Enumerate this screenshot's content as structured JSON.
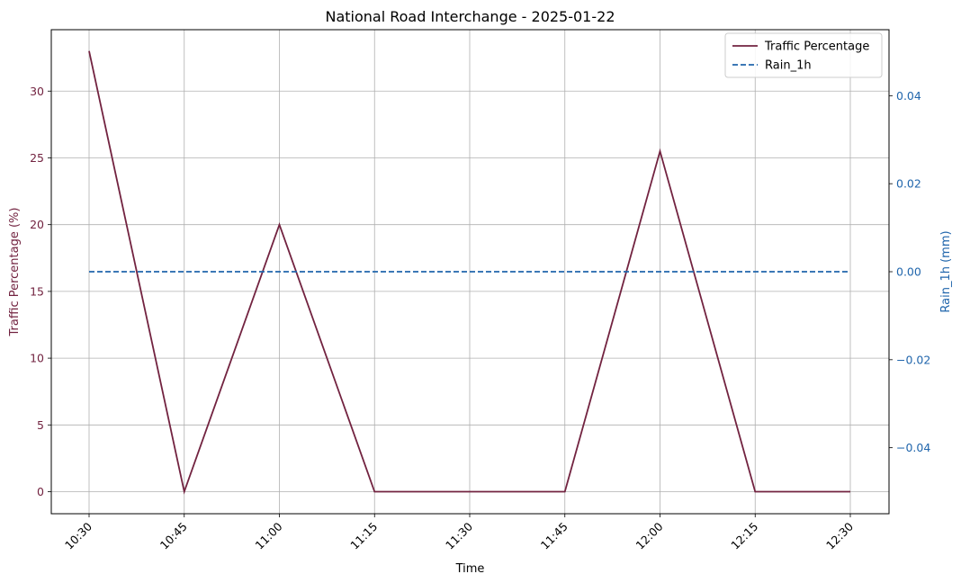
{
  "chart_data": {
    "type": "line",
    "title": "National Road Interchange - 2025-01-22",
    "xlabel": "Time",
    "ylabel_left": "Traffic Percentage (%)",
    "ylabel_right": "Rain_1h (mm)",
    "x": [
      "10:30",
      "10:45",
      "11:00",
      "11:15",
      "11:30",
      "11:45",
      "12:00",
      "12:15",
      "12:30"
    ],
    "ylim_left": [
      -1.65,
      34.6
    ],
    "ylim_right": [
      -0.055,
      0.055
    ],
    "yticks_left": [
      0,
      5,
      10,
      15,
      20,
      25,
      30
    ],
    "yticks_right": [
      -0.04,
      -0.02,
      0.0,
      0.02,
      0.04
    ],
    "ytick_labels_right": [
      "−0.04",
      "−0.02",
      "0.00",
      "0.02",
      "0.04"
    ],
    "grid": true,
    "legend_position": "top-right",
    "series": [
      {
        "name": "Traffic Percentage",
        "axis": "left",
        "style": "solid",
        "color": "#722340",
        "values": [
          33.0,
          0.0,
          20.0,
          0.0,
          0.0,
          0.0,
          25.5,
          0.0,
          0.0
        ]
      },
      {
        "name": "Rain_1h",
        "axis": "right",
        "style": "dashed",
        "color": "#2166ac",
        "values": [
          0.0,
          0.0,
          0.0,
          0.0,
          0.0,
          0.0,
          0.0,
          0.0,
          0.0
        ]
      }
    ]
  }
}
